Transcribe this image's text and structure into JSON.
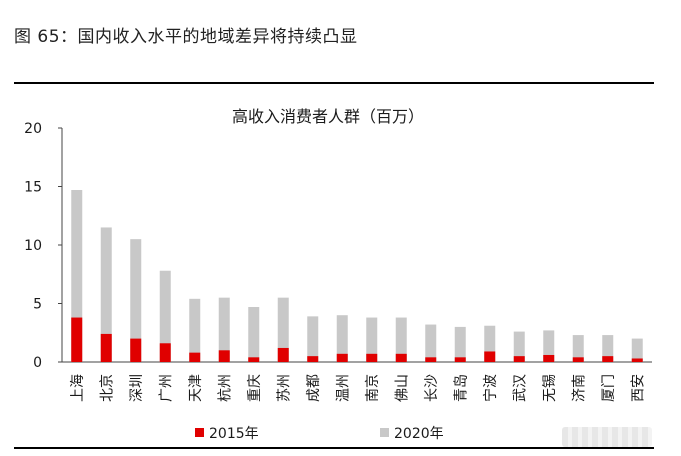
{
  "figure": {
    "caption": "图 65：国内收入水平的地域差异将持续凸显"
  },
  "chart_data": {
    "type": "bar",
    "stacked": true,
    "title": "高收入消费者人群（百万）",
    "categories": [
      "上海",
      "北京",
      "深圳",
      "广州",
      "天津",
      "杭州",
      "重庆",
      "苏州",
      "成都",
      "温州",
      "南京",
      "佛山",
      "长沙",
      "青岛",
      "宁波",
      "武汉",
      "无锡",
      "济南",
      "厦门",
      "西安"
    ],
    "series": [
      {
        "name": "2015年",
        "color": "#e00000",
        "values": [
          3.8,
          2.4,
          2.0,
          1.6,
          0.8,
          1.0,
          0.4,
          1.2,
          0.5,
          0.7,
          0.7,
          0.7,
          0.4,
          0.4,
          0.9,
          0.5,
          0.6,
          0.4,
          0.5,
          0.3
        ]
      },
      {
        "name": "2020年",
        "color": "#c8c8c8",
        "values": [
          14.7,
          11.5,
          10.5,
          7.8,
          5.4,
          5.5,
          4.7,
          5.5,
          3.9,
          4.0,
          3.8,
          3.8,
          3.2,
          3.0,
          3.1,
          2.6,
          2.7,
          2.3,
          2.3,
          2.0
        ]
      }
    ],
    "ylim": [
      0,
      20
    ],
    "yticks": [
      0,
      5,
      10,
      15,
      20
    ],
    "legend": "bottom",
    "grid": false
  }
}
